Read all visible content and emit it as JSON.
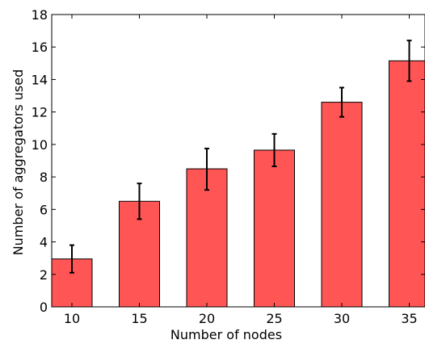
{
  "chart_data": {
    "type": "bar",
    "title": "",
    "xlabel": "Number of nodes",
    "ylabel": "Number of aggregators used",
    "categories": [
      "10",
      "15",
      "20",
      "25",
      "30",
      "35"
    ],
    "values": [
      2.95,
      6.5,
      8.5,
      9.65,
      12.6,
      15.15
    ],
    "errors": [
      [
        2.1,
        3.8
      ],
      [
        5.4,
        7.6
      ],
      [
        7.2,
        9.75
      ],
      [
        8.65,
        10.65
      ],
      [
        11.7,
        13.5
      ],
      [
        13.9,
        16.4
      ]
    ],
    "ylim": [
      0,
      18
    ],
    "yticks": [
      "0",
      "2",
      "4",
      "6",
      "8",
      "10",
      "12",
      "14",
      "16",
      "18"
    ],
    "grid": false,
    "bar_color": "#ff5555",
    "error_color": "#000000"
  }
}
